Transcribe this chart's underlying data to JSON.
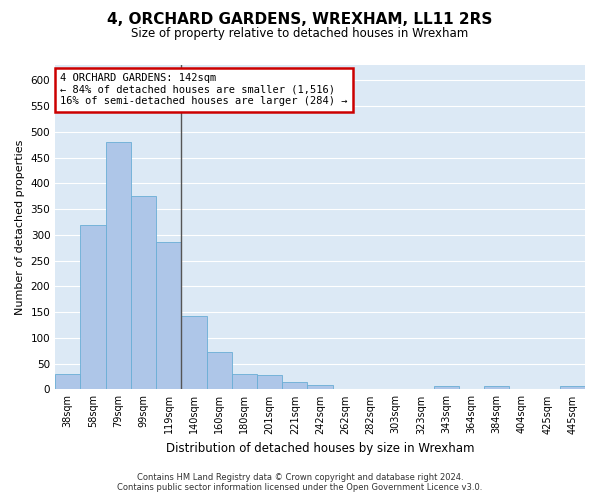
{
  "title": "4, ORCHARD GARDENS, WREXHAM, LL11 2RS",
  "subtitle": "Size of property relative to detached houses in Wrexham",
  "xlabel": "Distribution of detached houses by size in Wrexham",
  "ylabel": "Number of detached properties",
  "categories": [
    "38sqm",
    "58sqm",
    "79sqm",
    "99sqm",
    "119sqm",
    "140sqm",
    "160sqm",
    "180sqm",
    "201sqm",
    "221sqm",
    "242sqm",
    "262sqm",
    "282sqm",
    "303sqm",
    "323sqm",
    "343sqm",
    "364sqm",
    "384sqm",
    "404sqm",
    "425sqm",
    "445sqm"
  ],
  "values": [
    30,
    320,
    480,
    375,
    287,
    142,
    73,
    30,
    28,
    15,
    8,
    0,
    0,
    0,
    0,
    6,
    0,
    6,
    0,
    0,
    6
  ],
  "bar_color": "#aec6e8",
  "bar_edge_color": "#6aaed6",
  "vline_color": "#555555",
  "annotation_box_color": "#ffffff",
  "annotation_border_color": "#cc0000",
  "annotation_text_line1": "4 ORCHARD GARDENS: 142sqm",
  "annotation_text_line2": "← 84% of detached houses are smaller (1,516)",
  "annotation_text_line3": "16% of semi-detached houses are larger (284) →",
  "ylim": [
    0,
    630
  ],
  "yticks": [
    0,
    50,
    100,
    150,
    200,
    250,
    300,
    350,
    400,
    450,
    500,
    550,
    600
  ],
  "background_color": "#dce9f5",
  "plot_bg_color": "#dce9f5",
  "fig_bg_color": "#ffffff",
  "grid_color": "#ffffff",
  "footer_line1": "Contains HM Land Registry data © Crown copyright and database right 2024.",
  "footer_line2": "Contains public sector information licensed under the Open Government Licence v3.0."
}
